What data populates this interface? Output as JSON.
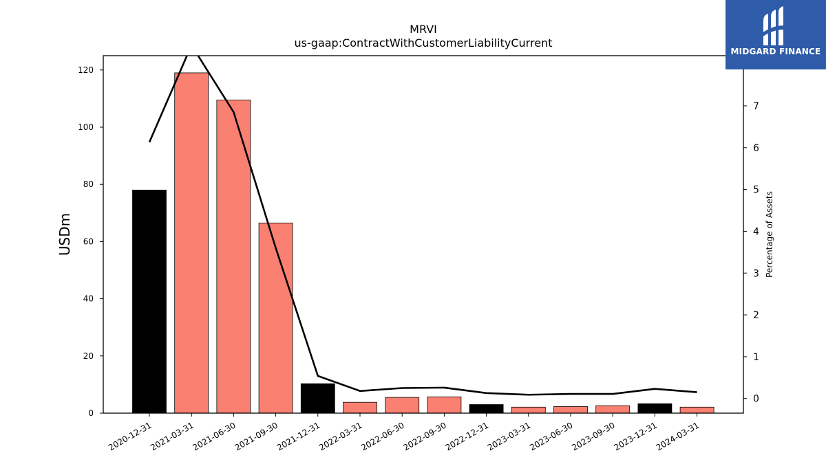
{
  "chart_data": {
    "type": "bar",
    "title": "MRVI",
    "subtitle": "us-gaap:ContractWithCustomerLiabilityCurrent",
    "ylabel": "USDm",
    "y2label": "Percentage of Assets",
    "categories": [
      "2020-12-31",
      "2021-03-31",
      "2021-06-30",
      "2021-09-30",
      "2021-12-31",
      "2022-03-31",
      "2022-06-30",
      "2022-09-30",
      "2022-12-31",
      "2023-03-31",
      "2023-06-30",
      "2023-09-30",
      "2023-12-31",
      "2024-03-31"
    ],
    "values": [
      78.0,
      119.0,
      109.5,
      66.5,
      10.3,
      3.8,
      5.5,
      5.7,
      3.0,
      2.1,
      2.3,
      2.6,
      3.3,
      2.1
    ],
    "bar_colors": [
      "#000000",
      "#fa8072",
      "#fa8072",
      "#fa8072",
      "#000000",
      "#fa8072",
      "#fa8072",
      "#fa8072",
      "#000000",
      "#fa8072",
      "#fa8072",
      "#fa8072",
      "#000000",
      "#fa8072"
    ],
    "line_values": [
      6.13,
      8.45,
      6.85,
      3.6,
      0.54,
      0.18,
      0.25,
      0.26,
      0.13,
      0.09,
      0.11,
      0.11,
      0.23,
      0.15
    ],
    "line_color": "#000000",
    "ylim": [
      0,
      125
    ],
    "yticks": [
      0,
      20,
      40,
      60,
      80,
      100,
      120
    ],
    "y2lim": [
      -0.35,
      8.2
    ],
    "y2ticks": [
      0,
      1,
      2,
      3,
      4,
      5,
      6,
      7
    ],
    "grid": false
  },
  "logo": {
    "text": "MIDGARD FINANCE",
    "color": "#2f5ca8"
  }
}
